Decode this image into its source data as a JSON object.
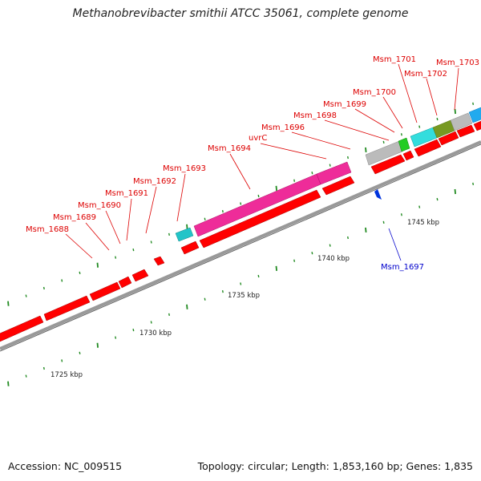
{
  "title": "Methanobrevibacter smithii ATCC 35061, complete genome",
  "footer": {
    "accession": "Accession: NC_009515",
    "stats": "Topology: circular; Length: 1,853,160 bp; Genes: 1,835"
  },
  "colors": {
    "forward_cds": "#ff0000",
    "label_red": "#dd0000",
    "label_blue": "#0000cc",
    "backbone": "#999999",
    "tick": "#228b22"
  },
  "ruler": [
    {
      "label": "1725 kbp",
      "kbp": 1725
    },
    {
      "label": "1730 kbp",
      "kbp": 1730
    },
    {
      "label": "1735 kbp",
      "kbp": 1735
    },
    {
      "label": "1740 kbp",
      "kbp": 1740
    },
    {
      "label": "1745 kbp",
      "kbp": 1745
    }
  ],
  "genes": [
    {
      "id": "Msm_1688"
    },
    {
      "id": "Msm_1689"
    },
    {
      "id": "Msm_1690"
    },
    {
      "id": "Msm_1691"
    },
    {
      "id": "Msm_1692"
    },
    {
      "id": "Msm_1693"
    },
    {
      "id": "Msm_1694"
    },
    {
      "id": "uvrC"
    },
    {
      "id": "Msm_1696"
    },
    {
      "id": "Msm_1697"
    },
    {
      "id": "Msm_1698"
    },
    {
      "id": "Msm_1699"
    },
    {
      "id": "Msm_1700"
    },
    {
      "id": "Msm_1701"
    },
    {
      "id": "Msm_1702"
    },
    {
      "id": "Msm_1703"
    }
  ]
}
